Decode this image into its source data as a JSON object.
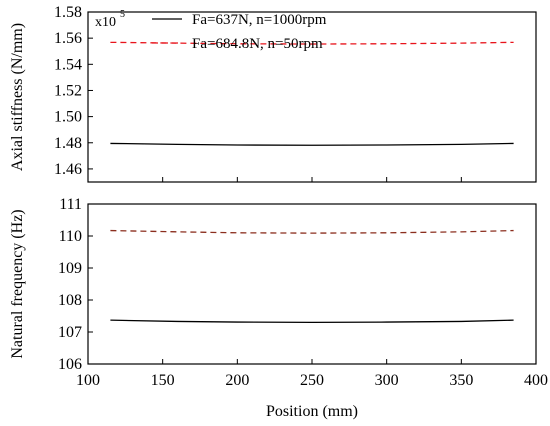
{
  "colors": {
    "series_1": "#000000",
    "series_2_top": "#e8141c",
    "series_2_bottom": "#8b2e1e"
  },
  "chart_data": [
    {
      "type": "line",
      "xlabel": "",
      "ylabel": "Axial stiffness (N/mm)",
      "multiplier": "x10",
      "multiplier_exp": "5",
      "xlim": [
        100,
        400
      ],
      "ylim": [
        1.45,
        1.58
      ],
      "yticks": [
        1.46,
        1.48,
        1.5,
        1.52,
        1.54,
        1.56,
        1.58
      ],
      "ytick_labels": [
        "1.46",
        "1.48",
        "1.50",
        "1.52",
        "1.54",
        "1.56",
        "1.58"
      ],
      "legend_position": "top-center",
      "series": [
        {
          "name": "Fa=637N, n=1000rpm",
          "style": "solid",
          "x": [
            115,
            160,
            200,
            250,
            300,
            350,
            385
          ],
          "y": [
            1.4795,
            1.4788,
            1.4783,
            1.4781,
            1.4783,
            1.4788,
            1.4795
          ]
        },
        {
          "name": "Fa=684.8N, n=50rpm",
          "style": "dashed",
          "x": [
            115,
            160,
            200,
            250,
            300,
            350,
            385
          ],
          "y": [
            1.5568,
            1.5562,
            1.5557,
            1.5555,
            1.5557,
            1.5562,
            1.5568
          ]
        }
      ]
    },
    {
      "type": "line",
      "xlabel": "Position (mm)",
      "ylabel": "Natural frequency (Hz)",
      "xlim": [
        100,
        400
      ],
      "ylim": [
        106,
        111
      ],
      "xticks": [
        100,
        150,
        200,
        250,
        300,
        350,
        400
      ],
      "xtick_labels": [
        "100",
        "150",
        "200",
        "250",
        "300",
        "350",
        "400"
      ],
      "yticks": [
        106,
        107,
        108,
        109,
        110,
        111
      ],
      "ytick_labels": [
        "106",
        "107",
        "108",
        "109",
        "110",
        "111"
      ],
      "series": [
        {
          "style": "solid",
          "x": [
            115,
            160,
            200,
            250,
            300,
            350,
            385
          ],
          "y": [
            107.37,
            107.33,
            107.31,
            107.3,
            107.31,
            107.33,
            107.37
          ]
        },
        {
          "style": "dashed",
          "x": [
            115,
            160,
            200,
            250,
            300,
            350,
            385
          ],
          "y": [
            110.17,
            110.13,
            110.1,
            110.09,
            110.1,
            110.13,
            110.17
          ]
        }
      ]
    }
  ]
}
